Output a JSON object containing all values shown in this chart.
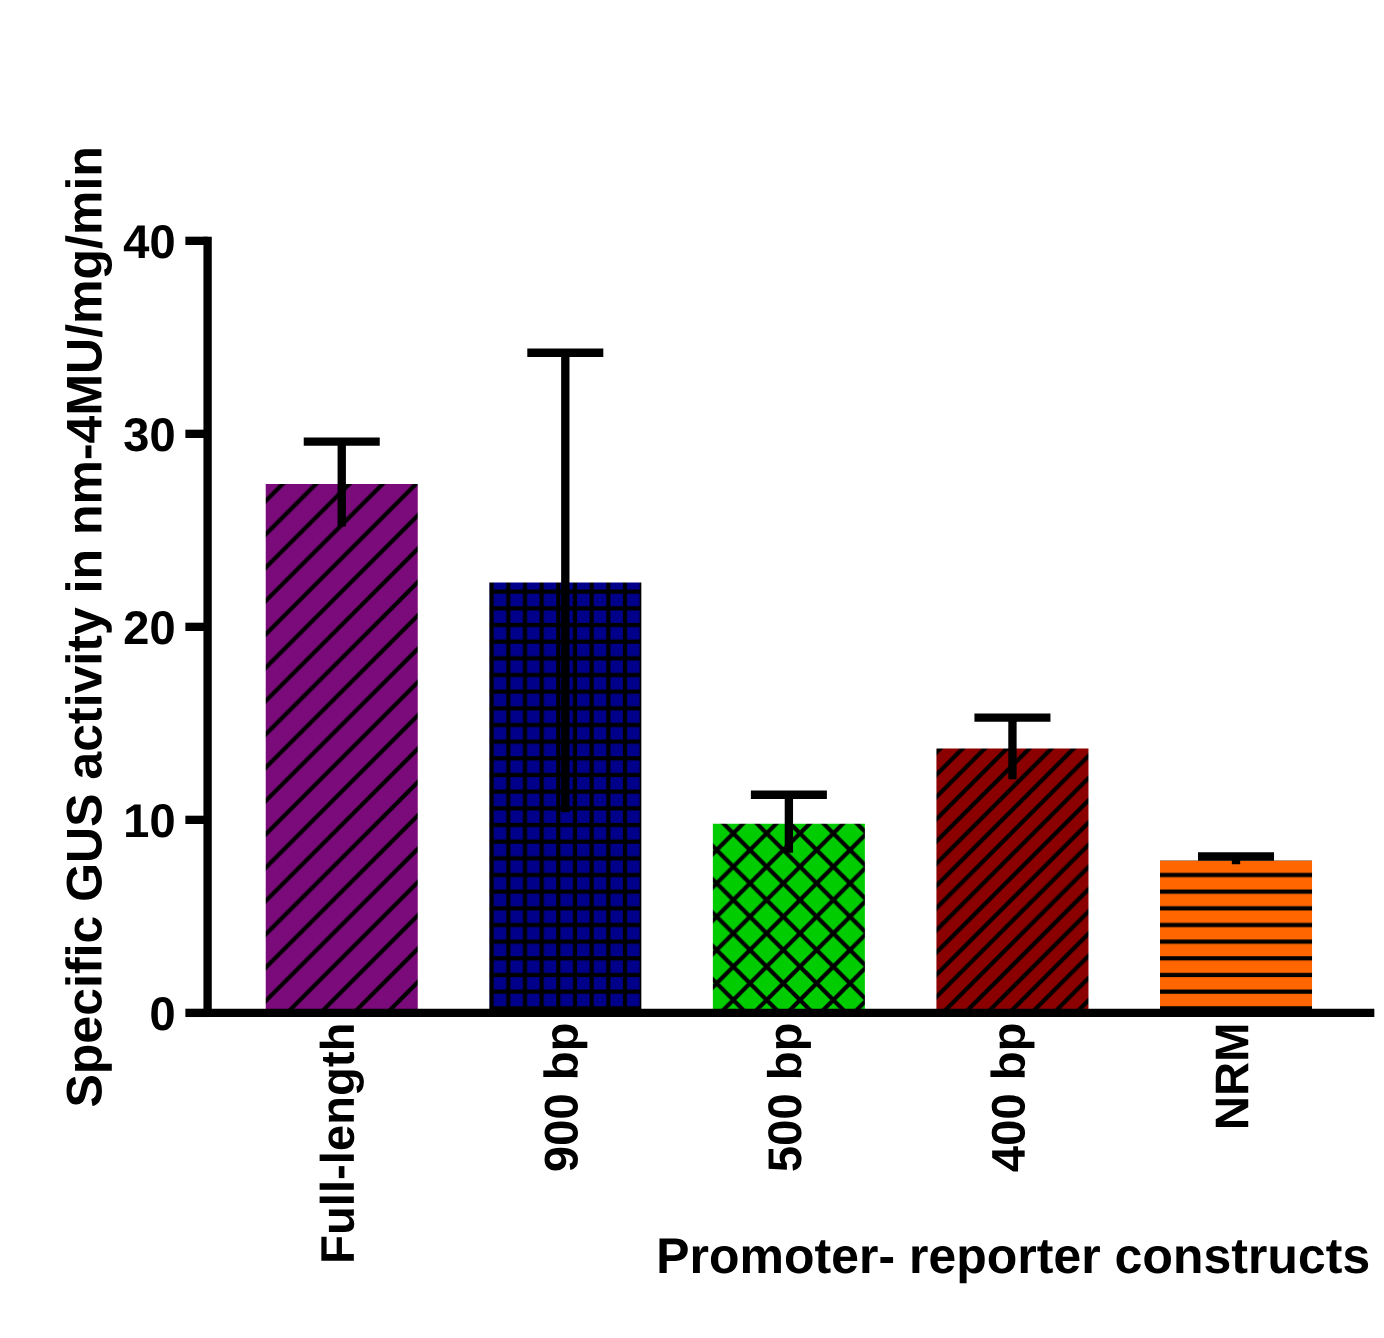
{
  "chart_data": {
    "type": "bar",
    "categories": [
      "Full-length",
      "900 bp",
      "500 bp",
      "400 bp",
      "NRM"
    ],
    "values": [
      27.4,
      22.3,
      9.8,
      13.7,
      7.9
    ],
    "errors": [
      2.2,
      11.9,
      1.5,
      1.6,
      0.2
    ],
    "colors": [
      "#7b0a7b",
      "#00008b",
      "#00cc00",
      "#8b0000",
      "#ff6600"
    ],
    "xlabel": "Promoter- reporter constructs",
    "ylabel": "Specific GUS activity in nm-4MU/mg/min",
    "ylim": [
      0,
      40
    ],
    "yticks": [
      0,
      10,
      20,
      30,
      40
    ],
    "grid": false,
    "legend": false
  }
}
